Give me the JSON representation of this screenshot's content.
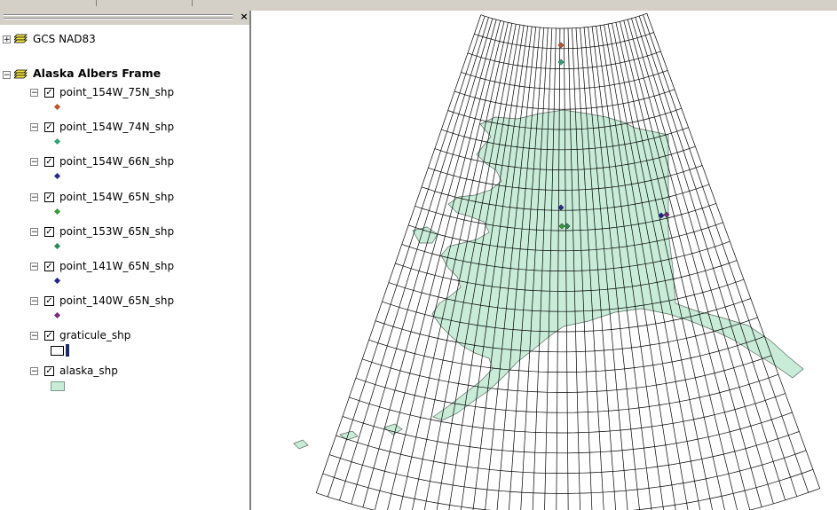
{
  "toc": {
    "close_glyph": "×",
    "groups": [
      {
        "name": "GCS NAD83",
        "expanded": false
      },
      {
        "name": "Alaska Albers  Frame",
        "expanded": true
      }
    ],
    "layers": [
      {
        "name": "point_154W_75N_shp",
        "checked": true,
        "symbol": "diamond",
        "color": "#c0502c"
      },
      {
        "name": "point_154W_74N_shp",
        "checked": true,
        "symbol": "diamond",
        "color": "#2aa676"
      },
      {
        "name": "point_154W_66N_shp",
        "checked": true,
        "symbol": "diamond",
        "color": "#2a2a8c"
      },
      {
        "name": "point_154W_65N_shp",
        "checked": true,
        "symbol": "diamond",
        "color": "#3a9a3a"
      },
      {
        "name": "point_153W_65N_shp",
        "checked": true,
        "symbol": "diamond",
        "color": "#2a8a5a"
      },
      {
        "name": "point_141W_65N_shp",
        "checked": true,
        "symbol": "diamond",
        "color": "#22228a"
      },
      {
        "name": "point_140W_65N_shp",
        "checked": true,
        "symbol": "diamond",
        "color": "#7a2a7a"
      },
      {
        "name": "graticule_shp",
        "checked": true,
        "symbol": "polygon-outline",
        "color": "#ffffff"
      },
      {
        "name": "alaska_shp",
        "checked": true,
        "symbol": "polygon-fill",
        "color": "#c8ecd8"
      }
    ]
  },
  "map": {
    "land_color": "#c8ecd8",
    "graticule_color": "#000000",
    "points": [
      {
        "layer": "point_154W_75N_shp",
        "color": "#c0502c"
      },
      {
        "layer": "point_154W_74N_shp",
        "color": "#2aa676"
      },
      {
        "layer": "point_154W_66N_shp",
        "color": "#2a2a8c"
      },
      {
        "layer": "point_154W_65N_shp",
        "color": "#3a9a3a"
      },
      {
        "layer": "point_153W_65N_shp",
        "color": "#2a8a5a"
      },
      {
        "layer": "point_141W_65N_shp",
        "color": "#22228a"
      },
      {
        "layer": "point_140W_65N_shp",
        "color": "#7a2a7a"
      }
    ]
  }
}
